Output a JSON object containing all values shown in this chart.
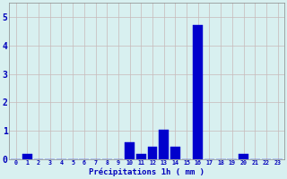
{
  "hours": [
    0,
    1,
    2,
    3,
    4,
    5,
    6,
    7,
    8,
    9,
    10,
    11,
    12,
    13,
    14,
    15,
    16,
    17,
    18,
    19,
    20,
    21,
    22,
    23
  ],
  "values": [
    0,
    0.2,
    0,
    0,
    0,
    0,
    0,
    0,
    0,
    0,
    0.6,
    0.2,
    0.45,
    1.05,
    0.45,
    0,
    4.7,
    0,
    0,
    0,
    0.2,
    0,
    0,
    0
  ],
  "bar_color": "#0000cc",
  "bar_edge_color": "#0000dd",
  "background_color": "#d8f0f0",
  "grid_color": "#c8b8b8",
  "xlabel": "Précipitations 1h ( mm )",
  "xlabel_color": "#0000bb",
  "tick_color": "#0000bb",
  "ylim": [
    0,
    5.5
  ],
  "yticks": [
    0,
    1,
    2,
    3,
    4,
    5
  ],
  "xlim": [
    -0.6,
    23.6
  ]
}
